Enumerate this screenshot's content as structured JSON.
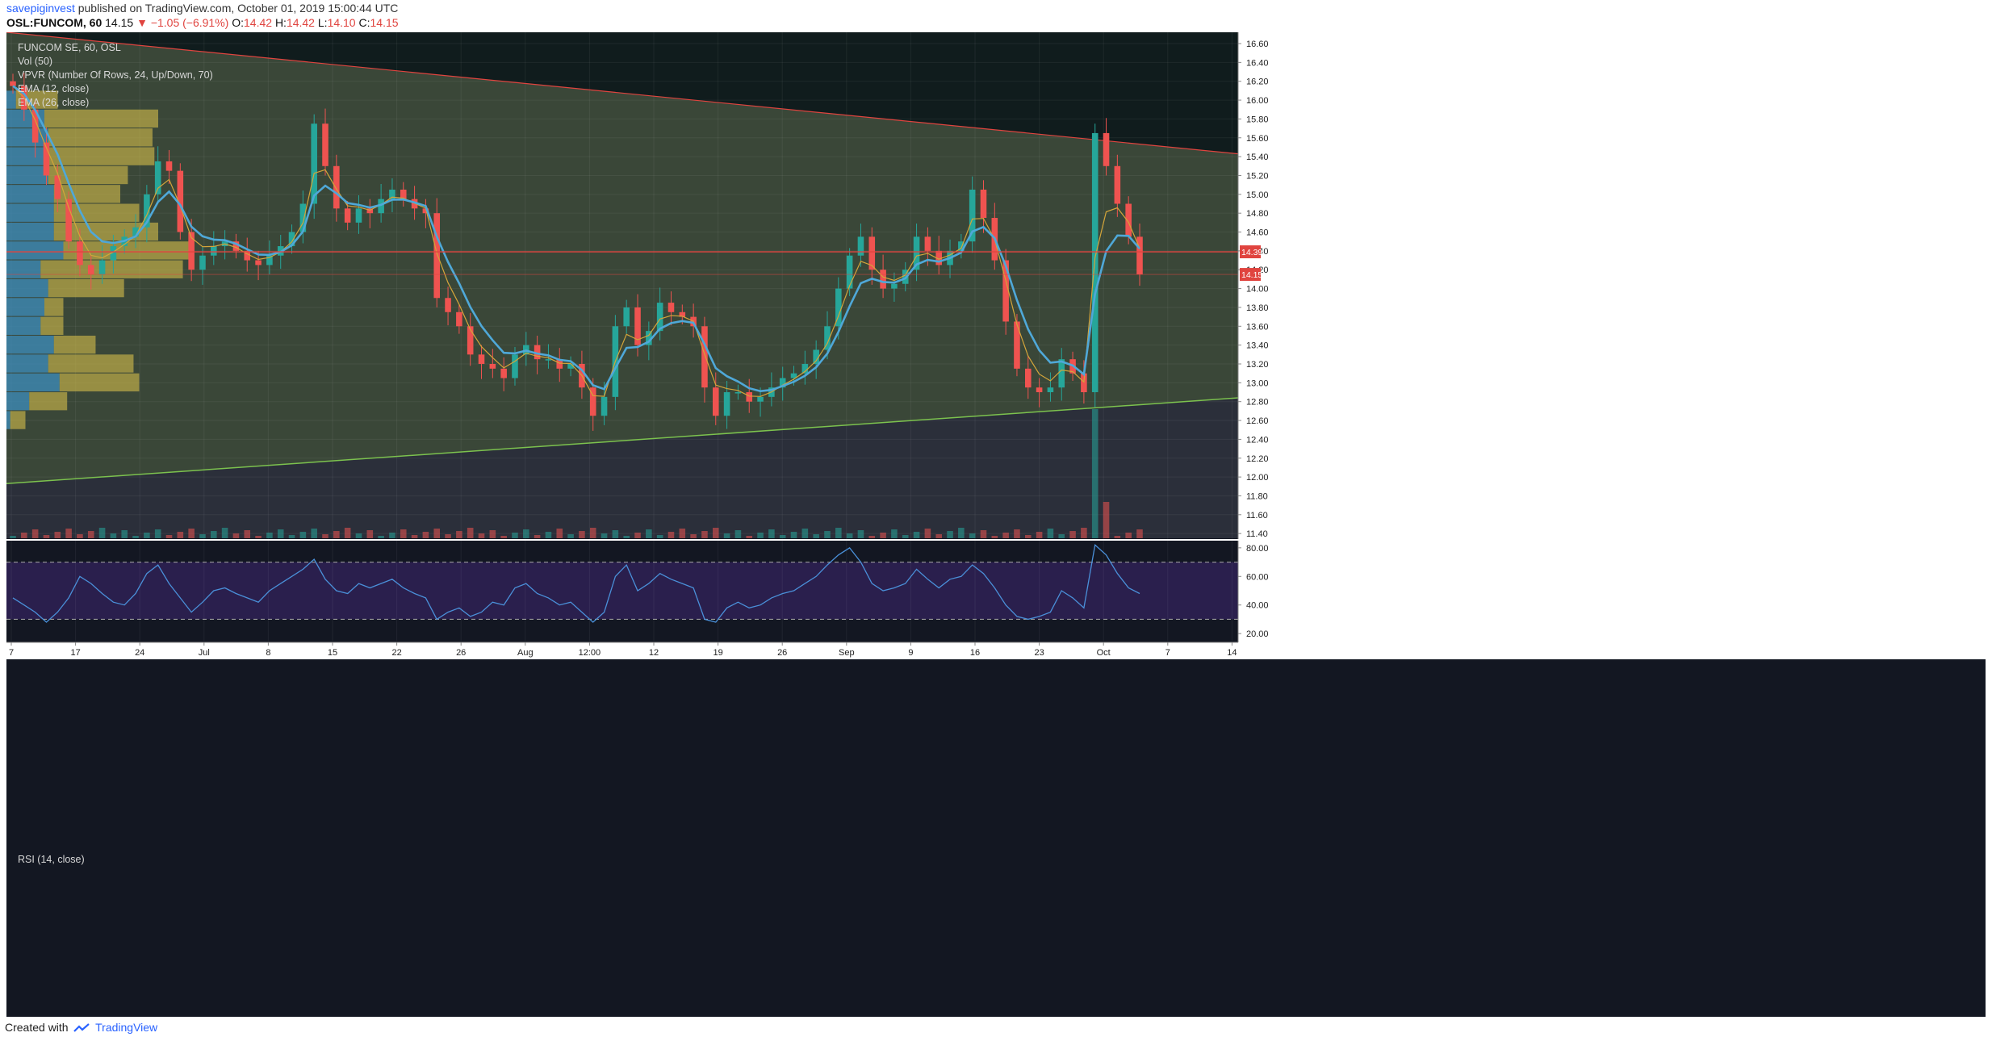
{
  "header": {
    "author": "savepiginvest",
    "published": "published on TradingView.com, October 01, 2019 15:00:44 UTC",
    "symbol": "OSL:FUNCOM, 60",
    "last": "14.15",
    "change": "−1.05 (−6.91%)",
    "o_label": "O:",
    "o": "14.42",
    "h_label": "H:",
    "h": "14.42",
    "l_label": "L:",
    "l": "14.10",
    "c_label": "C:",
    "c": "14.15",
    "down_glyph": "▼"
  },
  "legend": {
    "title": "FUNCOM SE, 60, OSL",
    "vol": "Vol (50)",
    "vpvr": "VPVR (Number Of Rows, 24, Up/Down, 70)",
    "ema12": "EMA (12, close)",
    "ema26": "EMA (26, close)",
    "rsi": "RSI (14, close)"
  },
  "footer": {
    "created_with": "Created with",
    "brand": "TradingView"
  },
  "colors": {
    "background": "#131722",
    "candle_up": "#26a69a",
    "candle_down": "#ef5350",
    "ema12": "#d4a53a",
    "ema26": "#4fa8d8",
    "resistance_line": "#e0443f",
    "support_line": "#7cc24e",
    "horizontal_level": "#e0443f",
    "rsi_line": "#4a90d9",
    "rsi_band": "#2a1f4d"
  },
  "chart_data": [
    {
      "type": "candlestick",
      "title": "FUNCOM SE, 60, OSL",
      "x_tick_labels": [
        "7",
        "17",
        "24",
        "Jul",
        "8",
        "15",
        "22",
        "26",
        "Aug",
        "12:00",
        "12",
        "19",
        "26",
        "Sep",
        "9",
        "16",
        "23",
        "Oct",
        "7",
        "14"
      ],
      "y_tick_labels": [
        "16.60",
        "16.40",
        "16.20",
        "16.00",
        "15.80",
        "15.60",
        "15.40",
        "15.20",
        "15.00",
        "14.80",
        "14.60",
        "14.40",
        "14.20",
        "14.00",
        "13.80",
        "13.60",
        "13.40",
        "13.20",
        "13.00",
        "12.80",
        "12.60",
        "12.40",
        "12.20",
        "12.00",
        "11.80",
        "11.60",
        "11.40"
      ],
      "ylim": [
        11.35,
        16.72
      ],
      "closes": [
        16.15,
        15.9,
        15.55,
        15.2,
        14.95,
        14.5,
        14.25,
        14.15,
        14.3,
        14.45,
        14.55,
        14.65,
        15.0,
        15.35,
        15.25,
        14.6,
        14.2,
        14.35,
        14.45,
        14.5,
        14.4,
        14.3,
        14.25,
        14.35,
        14.45,
        14.6,
        14.9,
        15.75,
        15.3,
        14.85,
        14.7,
        14.85,
        14.8,
        14.95,
        15.05,
        14.95,
        14.85,
        14.8,
        13.9,
        13.75,
        13.6,
        13.3,
        13.2,
        13.15,
        13.05,
        13.3,
        13.4,
        13.25,
        13.25,
        13.15,
        13.2,
        12.95,
        12.65,
        12.85,
        13.6,
        13.8,
        13.4,
        13.55,
        13.85,
        13.75,
        13.7,
        13.6,
        12.95,
        12.65,
        12.9,
        12.9,
        12.8,
        12.85,
        12.95,
        13.05,
        13.1,
        13.2,
        13.35,
        13.6,
        14.0,
        14.35,
        14.55,
        14.2,
        14.0,
        14.05,
        14.2,
        14.55,
        14.4,
        14.25,
        14.4,
        14.5,
        15.05,
        14.75,
        14.3,
        13.65,
        13.15,
        12.95,
        12.9,
        12.95,
        13.25,
        13.1,
        12.9,
        15.65,
        15.3,
        14.9,
        14.55,
        14.15
      ],
      "ema12_label": "EMA (12, close)",
      "ema26_label": "EMA (26, close)",
      "resistance_line": {
        "start": 16.72,
        "end": 15.43
      },
      "support_line": {
        "start": 11.93,
        "end": 12.84
      },
      "horizontal_level": 14.39,
      "price_badges": [
        {
          "label": "14.39",
          "color": "#e0443f"
        },
        {
          "label": "14.15",
          "color": "#e0443f"
        }
      ],
      "vpvr_levels": [
        16.0,
        15.8,
        15.6,
        15.4,
        15.2,
        15.0,
        14.8,
        14.6,
        14.4,
        14.2,
        14.0,
        13.8,
        13.6,
        13.4,
        13.2,
        13.0,
        12.8,
        12.6
      ],
      "vpvr_up": [
        0.05,
        0.2,
        0.22,
        0.2,
        0.22,
        0.25,
        0.25,
        0.25,
        0.3,
        0.18,
        0.22,
        0.2,
        0.18,
        0.25,
        0.22,
        0.28,
        0.12,
        0.02
      ],
      "vpvr_down": [
        0.22,
        0.6,
        0.55,
        0.58,
        0.42,
        0.35,
        0.45,
        0.55,
        0.68,
        0.75,
        0.4,
        0.1,
        0.12,
        0.22,
        0.45,
        0.42,
        0.2,
        0.08
      ],
      "volume_spike_index": 97
    },
    {
      "type": "line",
      "title": "RSI (14, close)",
      "y_tick_labels": [
        "80.00",
        "60.00",
        "40.00",
        "20.00"
      ],
      "ylim": [
        15,
        85
      ],
      "band": [
        30,
        70
      ],
      "values": [
        45,
        40,
        35,
        28,
        35,
        45,
        60,
        55,
        48,
        42,
        40,
        48,
        62,
        68,
        55,
        45,
        35,
        42,
        50,
        52,
        48,
        45,
        42,
        50,
        55,
        60,
        65,
        72,
        58,
        50,
        48,
        55,
        52,
        55,
        58,
        52,
        48,
        45,
        30,
        35,
        38,
        32,
        35,
        42,
        40,
        52,
        55,
        48,
        45,
        40,
        42,
        35,
        28,
        35,
        60,
        68,
        50,
        55,
        62,
        58,
        55,
        52,
        30,
        28,
        38,
        42,
        38,
        40,
        45,
        48,
        50,
        55,
        60,
        68,
        75,
        80,
        70,
        55,
        50,
        52,
        55,
        65,
        58,
        52,
        58,
        60,
        68,
        62,
        52,
        40,
        32,
        30,
        32,
        35,
        50,
        45,
        38,
        82,
        75,
        62,
        52,
        48
      ]
    }
  ]
}
